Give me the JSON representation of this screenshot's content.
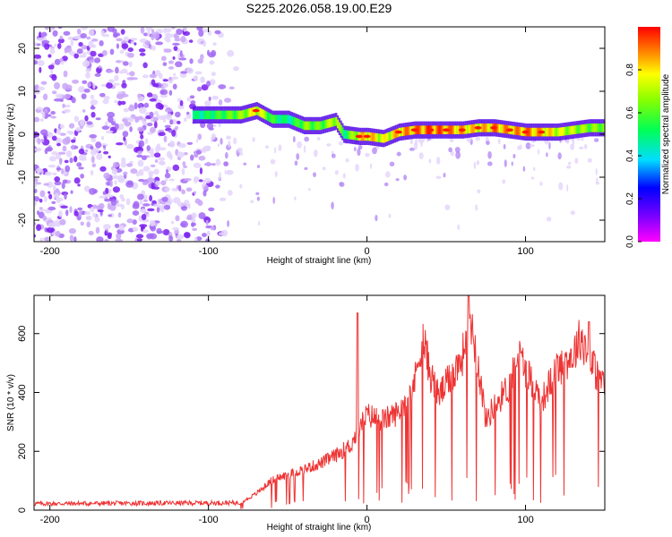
{
  "title": "S225.2026.058.19.00.E29",
  "chart_data": [
    {
      "type": "heatmap",
      "name": "spectrogram",
      "xlabel": "Height of straight line (km)",
      "ylabel": "Frequency (Hz)",
      "xlim": [
        -210,
        150
      ],
      "ylim": [
        -25,
        25
      ],
      "xticks": [
        -200,
        -100,
        0,
        100
      ],
      "yticks": [
        20,
        10,
        0,
        -10,
        -20
      ],
      "colorbar": {
        "label": "Normalized spectral amplitude",
        "range": [
          0,
          1
        ],
        "ticks": [
          0.0,
          0.2,
          0.4,
          0.6,
          0.8
        ]
      },
      "noise_region_x": [
        -210,
        -80
      ],
      "signal_track": {
        "x": [
          -110,
          -95,
          -80,
          -70,
          -60,
          -50,
          -40,
          -30,
          -20,
          -15,
          -5,
          0,
          10,
          20,
          30,
          40,
          50,
          60,
          70,
          80,
          90,
          100,
          110,
          120,
          130,
          140,
          150
        ],
        "freq": [
          4.5,
          4.5,
          4.5,
          5.5,
          3.5,
          3.5,
          2,
          2,
          3,
          0,
          -0.5,
          -0.5,
          -1,
          0.5,
          1,
          1,
          1,
          1,
          1.5,
          1.5,
          1,
          0.5,
          0.5,
          0.5,
          1,
          1.5,
          1.5
        ],
        "amplitude": [
          0.5,
          0.6,
          0.7,
          0.85,
          0.6,
          0.5,
          0.7,
          0.65,
          0.8,
          0.55,
          0.85,
          0.9,
          0.8,
          0.9,
          0.95,
          1.0,
          0.95,
          0.9,
          0.85,
          0.95,
          0.9,
          0.95,
          0.9,
          0.8,
          0.75,
          0.7,
          0.7
        ]
      }
    },
    {
      "type": "line",
      "name": "snr",
      "xlabel": "Height of straight line (km)",
      "ylabel": "SNR (10 * v/v)",
      "xlim": [
        -210,
        150
      ],
      "ylim": [
        0,
        730
      ],
      "xticks": [
        -200,
        -100,
        0,
        100
      ],
      "yticks": [
        0,
        200,
        400,
        600
      ],
      "color": "#ee3333",
      "envelope": {
        "x": [
          -210,
          -80,
          -70,
          -60,
          -50,
          -40,
          -30,
          -20,
          -10,
          -5,
          0,
          10,
          20,
          30,
          35,
          40,
          45,
          50,
          60,
          65,
          70,
          75,
          80,
          90,
          95,
          100,
          110,
          115,
          120,
          130,
          135,
          140,
          145,
          150
        ],
        "values": [
          22,
          25,
          60,
          110,
          130,
          150,
          170,
          200,
          240,
          300,
          350,
          330,
          360,
          470,
          640,
          500,
          420,
          460,
          560,
          720,
          540,
          330,
          380,
          460,
          580,
          520,
          400,
          460,
          520,
          570,
          640,
          560,
          500,
          450
        ]
      },
      "spikes": [
        {
          "x": -6,
          "value": 670
        },
        {
          "x": 64,
          "value": 730
        },
        {
          "x": 140,
          "value": 640
        }
      ]
    }
  ]
}
